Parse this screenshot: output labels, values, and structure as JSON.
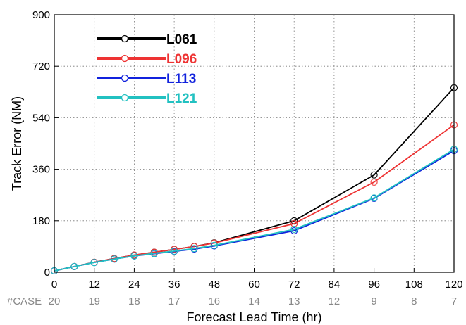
{
  "chart_data": {
    "type": "line",
    "title": "",
    "xlabel": "Forecast Lead Time (hr)",
    "ylabel": "Track Error (NM)",
    "x": [
      0,
      6,
      12,
      18,
      24,
      30,
      36,
      42,
      48,
      72,
      96,
      120
    ],
    "xticks": [
      0,
      12,
      24,
      36,
      48,
      60,
      72,
      84,
      96,
      108,
      120
    ],
    "yticks": [
      0,
      180,
      360,
      540,
      720,
      900
    ],
    "xlim": [
      0,
      120
    ],
    "ylim": [
      0,
      900
    ],
    "grid": true,
    "legend_position": "top-left",
    "case_label": "#CASE",
    "case_counts": [
      {
        "x": 0,
        "label": "20"
      },
      {
        "x": 12,
        "label": "19"
      },
      {
        "x": 24,
        "label": "18"
      },
      {
        "x": 36,
        "label": "17"
      },
      {
        "x": 48,
        "label": "16"
      },
      {
        "x": 60,
        "label": "14"
      },
      {
        "x": 72,
        "label": "13"
      },
      {
        "x": 84,
        "label": "12"
      },
      {
        "x": 96,
        "label": "9"
      },
      {
        "x": 108,
        "label": "8"
      },
      {
        "x": 120,
        "label": "7"
      }
    ],
    "series": [
      {
        "name": "L061",
        "color": "#000000",
        "values": [
          5,
          20,
          35,
          48,
          60,
          70,
          80,
          90,
          103,
          180,
          340,
          645
        ]
      },
      {
        "name": "L096",
        "color": "#ee3333",
        "values": [
          5,
          20,
          35,
          48,
          60,
          70,
          80,
          90,
          102,
          170,
          315,
          515
        ]
      },
      {
        "name": "L113",
        "color": "#1122dd",
        "values": [
          5,
          20,
          34,
          46,
          57,
          65,
          73,
          81,
          92,
          145,
          258,
          425
        ]
      },
      {
        "name": "L121",
        "color": "#22c1c1",
        "values": [
          5,
          20,
          34,
          46,
          57,
          66,
          74,
          83,
          94,
          150,
          260,
          430
        ]
      }
    ]
  }
}
